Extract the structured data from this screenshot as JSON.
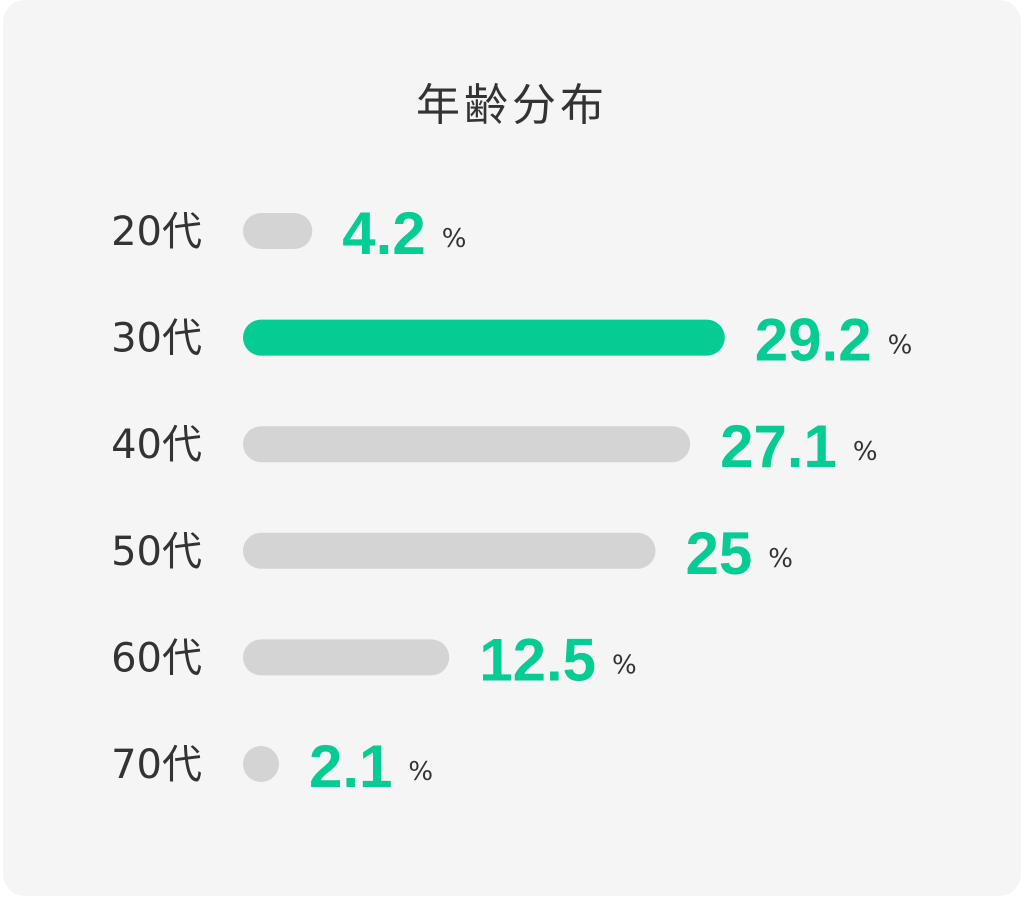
{
  "chart_data": {
    "type": "bar",
    "orientation": "horizontal",
    "title": "年齢分布",
    "categories": [
      "20代",
      "30代",
      "40代",
      "50代",
      "60代",
      "70代"
    ],
    "values": [
      4.2,
      29.2,
      27.1,
      25,
      12.5,
      2.1
    ],
    "value_labels": [
      "4.2",
      "29.2",
      "27.1",
      "25",
      "12.5",
      "2.1"
    ],
    "unit": "%",
    "highlight_index": 1,
    "xlim": [
      0,
      30
    ],
    "grid": false,
    "legend": "none",
    "colors": {
      "highlight_bar": "#05cc93",
      "bar": "#d4d4d4",
      "value_text": "#05cc93",
      "text": "#333333",
      "background": "#f5f5f5"
    }
  }
}
